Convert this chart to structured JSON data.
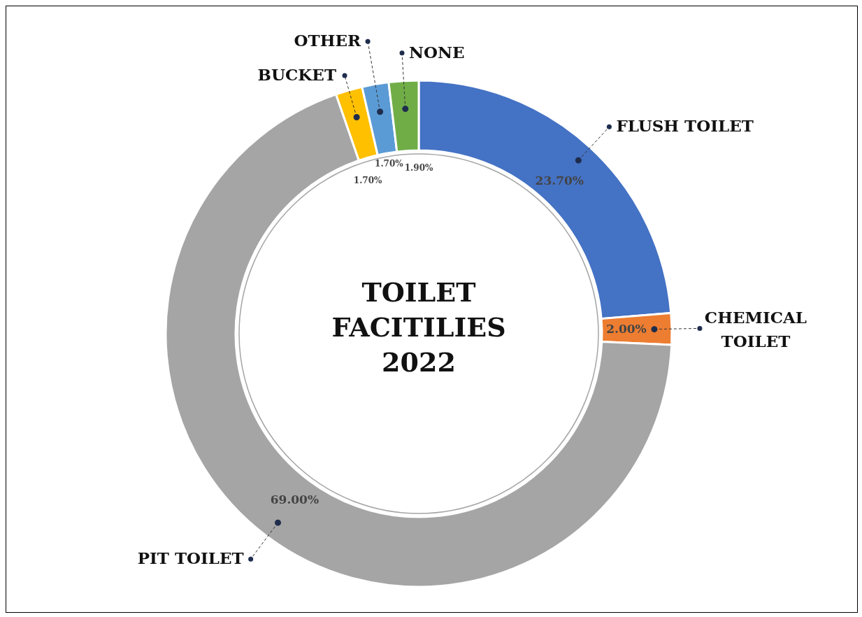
{
  "chart_data": {
    "type": "donut",
    "title": "TOILET FACITILIES 2022",
    "categories": [
      "FLUSH TOILET",
      "CHEMICAL TOILET",
      "PIT TOILET",
      "BUCKET",
      "OTHER",
      "NONE"
    ],
    "values": [
      23.7,
      2.0,
      69.0,
      1.7,
      1.7,
      1.9
    ],
    "value_labels": [
      "23.70%",
      "2.00%",
      "69.00%",
      "1.70%",
      "1.70%",
      "1.90%"
    ],
    "colors": [
      "#4472c4",
      "#ed7d31",
      "#a5a5a5",
      "#ffc000",
      "#5b9bd5",
      "#70ad47"
    ]
  }
}
